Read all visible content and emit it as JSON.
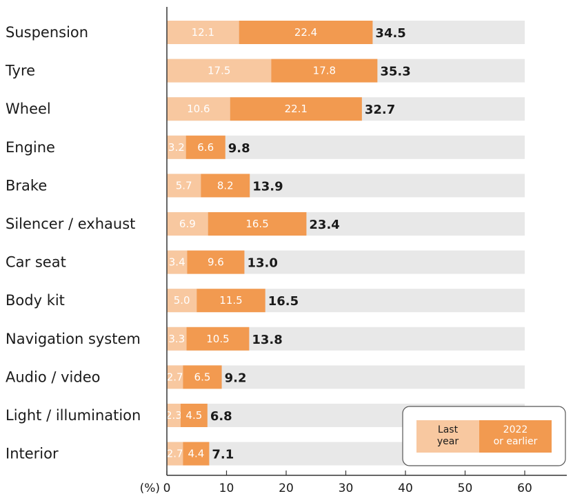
{
  "chart_data": {
    "type": "bar",
    "orientation": "horizontal",
    "stacked": true,
    "categories": [
      "Suspension",
      "Tyre",
      "Wheel",
      "Engine",
      "Brake",
      "Silencer / exhaust",
      "Car seat",
      "Body kit",
      "Navigation system",
      "Audio / video",
      "Light / illumination",
      "Interior"
    ],
    "series": [
      {
        "name": "Last\nyear",
        "color": "#f8c8a0",
        "values": [
          12.1,
          17.5,
          10.6,
          3.2,
          5.7,
          6.9,
          3.4,
          5.0,
          3.3,
          2.7,
          2.3,
          2.7
        ]
      },
      {
        "name": "2022\nor earlier",
        "color": "#f29a50",
        "values": [
          22.4,
          17.8,
          22.1,
          6.6,
          8.2,
          16.5,
          9.6,
          11.5,
          10.5,
          6.5,
          4.5,
          4.4
        ]
      }
    ],
    "totals": [
      "34.5",
      "35.3",
      "32.7",
      "9.8",
      "13.9",
      "23.4",
      "13.0",
      "16.5",
      "13.8",
      "9.2",
      "6.8",
      "7.1"
    ],
    "segment_labels": [
      [
        "12.1",
        "17.5",
        "10.6",
        "3.2",
        "5.7",
        "6.9",
        "3.4",
        "5.0",
        "3.3",
        "2.7",
        "2.3",
        "2.7"
      ],
      [
        "22.4",
        "17.8",
        "22.1",
        "6.6",
        "8.2",
        "16.5",
        "9.6",
        "11.5",
        "10.5",
        "6.5",
        "4.5",
        "4.4"
      ]
    ],
    "background_bar_value": 60,
    "background_color": "#e8e8e8",
    "xlim": [
      0,
      60
    ],
    "xticks": [
      "0",
      "10",
      "20",
      "30",
      "40",
      "50",
      "60"
    ],
    "xunit": "(%)",
    "legend_position": "bottom-right",
    "grid": false
  }
}
